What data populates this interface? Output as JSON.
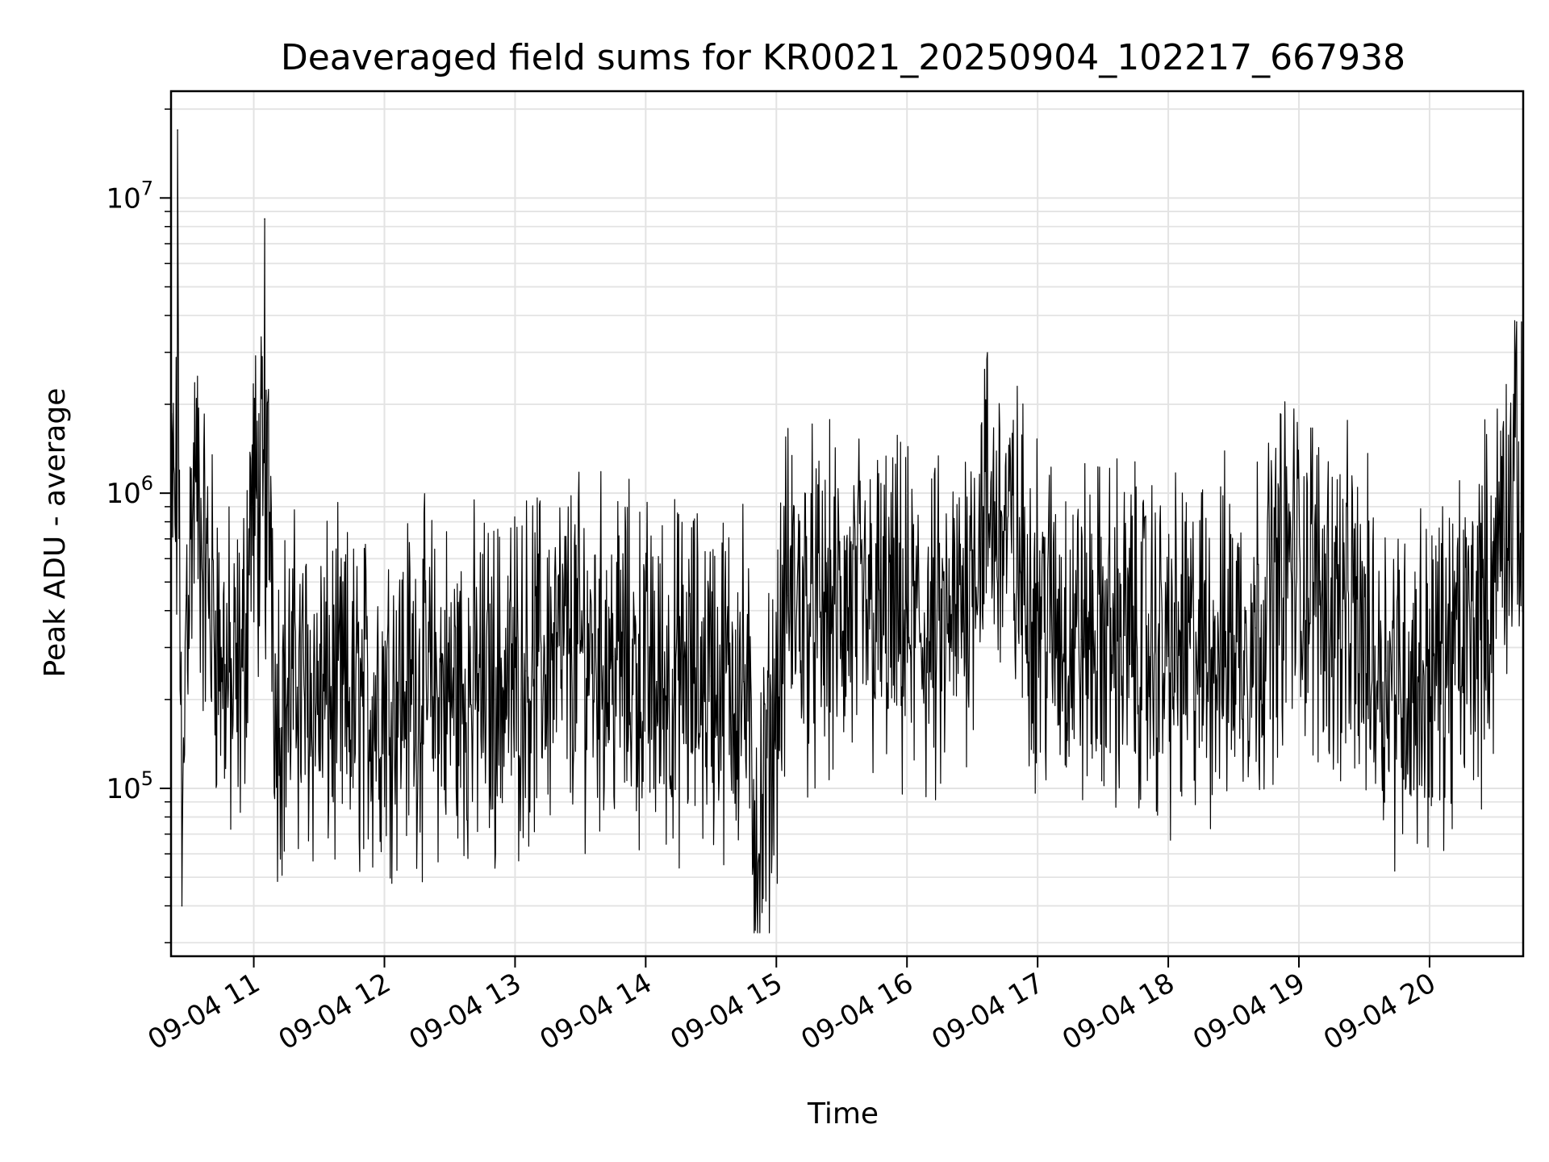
{
  "chart_data": {
    "type": "line",
    "title": "Deaveraged field sums for KR0021_20250904_102217_667938",
    "xlabel": "Time",
    "ylabel": "Peak ADU - average",
    "y_scale": "log",
    "ylim": [
      27000,
      23000000
    ],
    "xlim": [
      "2025-09-04 10:22",
      "2025-09-04 20:43"
    ],
    "grid": true,
    "grid_minor": true,
    "line_color": "#000000",
    "grid_color": "#e3e3e3",
    "x_ticks": [
      {
        "value": "2025-09-04 11:00",
        "label": "09-04 11"
      },
      {
        "value": "2025-09-04 12:00",
        "label": "09-04 12"
      },
      {
        "value": "2025-09-04 13:00",
        "label": "09-04 13"
      },
      {
        "value": "2025-09-04 14:00",
        "label": "09-04 14"
      },
      {
        "value": "2025-09-04 15:00",
        "label": "09-04 15"
      },
      {
        "value": "2025-09-04 16:00",
        "label": "09-04 16"
      },
      {
        "value": "2025-09-04 17:00",
        "label": "09-04 17"
      },
      {
        "value": "2025-09-04 18:00",
        "label": "09-04 18"
      },
      {
        "value": "2025-09-04 19:00",
        "label": "09-04 19"
      },
      {
        "value": "2025-09-04 20:00",
        "label": "09-04 20"
      }
    ],
    "y_ticks": [
      {
        "value": 100000,
        "base": "10",
        "exp": "5"
      },
      {
        "value": 1000000,
        "base": "10",
        "exp": "6"
      },
      {
        "value": 10000000,
        "base": "10",
        "exp": "7"
      }
    ],
    "series": [
      {
        "x": [
          "2025-09-04 10:22",
          "2025-09-04 10:25",
          "2025-09-04 10:27",
          "2025-09-04 10:29",
          "2025-09-04 10:31",
          "2025-09-04 10:33",
          "2025-09-04 10:38",
          "2025-09-04 10:45",
          "2025-09-04 10:50",
          "2025-09-04 10:55",
          "2025-09-04 11:05",
          "2025-09-04 11:10",
          "2025-09-04 11:20",
          "2025-09-04 11:35",
          "2025-09-04 11:50",
          "2025-09-04 12:10",
          "2025-09-04 12:30",
          "2025-09-04 12:50",
          "2025-09-04 13:05",
          "2025-09-04 13:25",
          "2025-09-04 13:45",
          "2025-09-04 14:05",
          "2025-09-04 14:30",
          "2025-09-04 14:45",
          "2025-09-04 14:52",
          "2025-09-04 15:05",
          "2025-09-04 15:20",
          "2025-09-04 15:40",
          "2025-09-04 16:00",
          "2025-09-04 16:20",
          "2025-09-04 16:35",
          "2025-09-04 16:45",
          "2025-09-04 17:00",
          "2025-09-04 17:20",
          "2025-09-04 17:40",
          "2025-09-04 18:00",
          "2025-09-04 18:20",
          "2025-09-04 18:40",
          "2025-09-04 18:55",
          "2025-09-04 19:20",
          "2025-09-04 19:40",
          "2025-09-04 19:55",
          "2025-09-04 20:15",
          "2025-09-04 20:30",
          "2025-09-04 20:40",
          "2025-09-04 20:43"
        ],
        "y": [
          600000,
          17000000,
          40000,
          450000,
          700000,
          1200000,
          500000,
          300000,
          200000,
          250000,
          8500000,
          200000,
          220000,
          200000,
          190000,
          230000,
          210000,
          220000,
          250000,
          300000,
          280000,
          230000,
          240000,
          230000,
          60000,
          450000,
          380000,
          400000,
          350000,
          300000,
          900000,
          750000,
          400000,
          320000,
          330000,
          280000,
          300000,
          350000,
          600000,
          400000,
          250000,
          230000,
          300000,
          500000,
          3800000,
          500000
        ]
      }
    ]
  }
}
